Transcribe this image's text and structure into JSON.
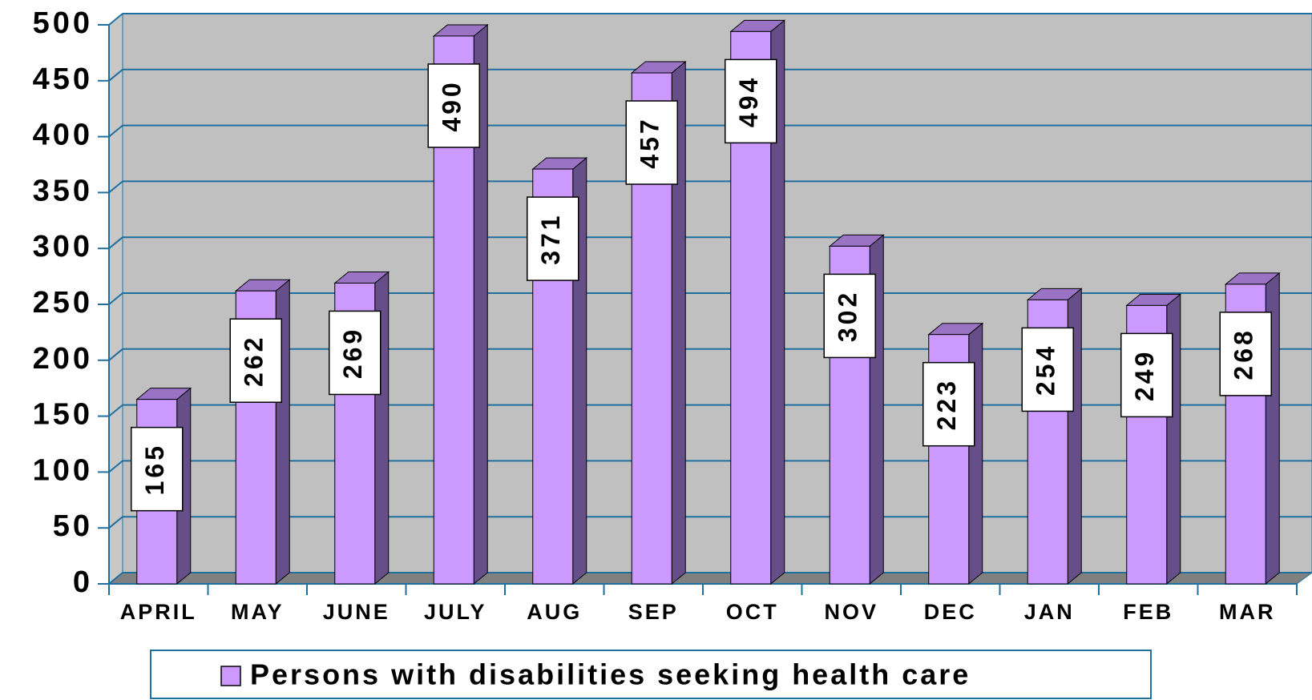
{
  "chart_data": {
    "type": "bar3d",
    "categories": [
      "APRIL",
      "MAY",
      "JUNE",
      "JULY",
      "AUG",
      "SEP",
      "OCT",
      "NOV",
      "DEC",
      "JAN",
      "FEB",
      "MAR"
    ],
    "series": [
      {
        "name": "Persons with disabilities seeking health care",
        "color": "#cc99ff",
        "values": [
          165,
          262,
          269,
          490,
          371,
          457,
          494,
          302,
          223,
          254,
          249,
          268
        ]
      }
    ],
    "ylim": [
      0,
      500
    ],
    "yticks": [
      0,
      50,
      100,
      150,
      200,
      250,
      300,
      350,
      400,
      450,
      500
    ],
    "grid": true,
    "legend": "bottom"
  }
}
